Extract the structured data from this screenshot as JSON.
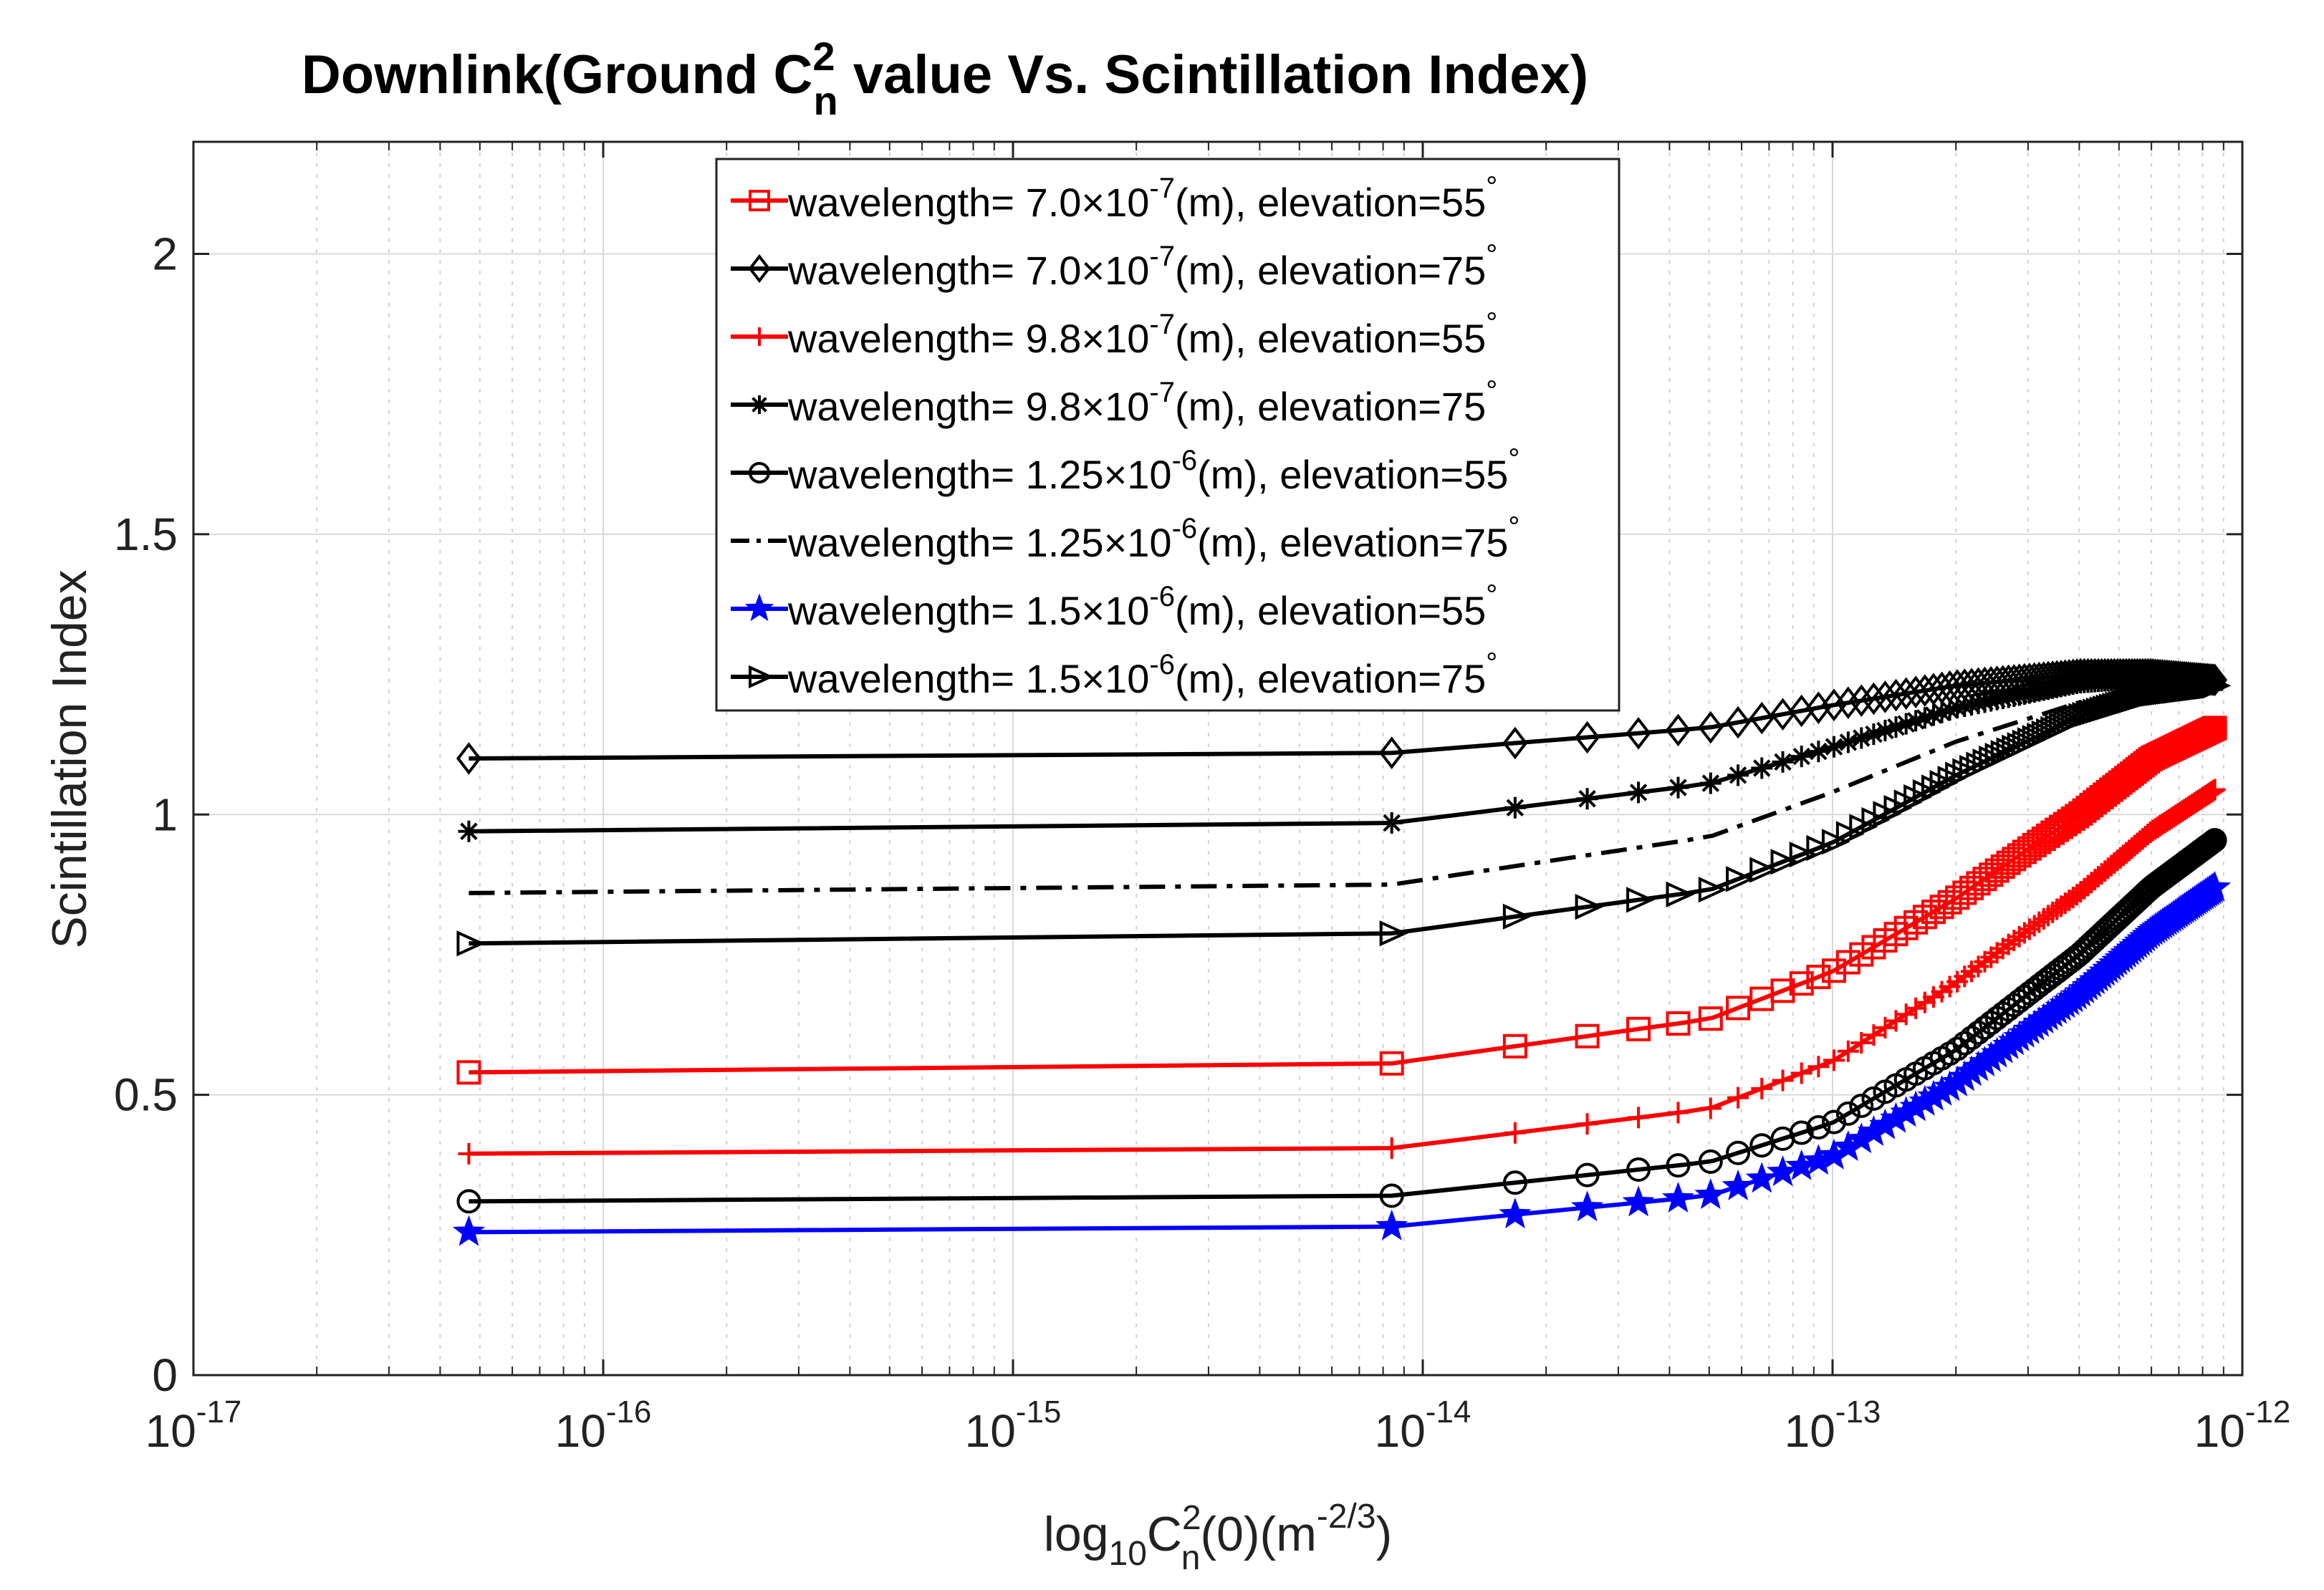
{
  "chart_data": {
    "type": "line",
    "title": {
      "prefix": "Downlink(Ground C",
      "sup": "2",
      "sub": "n",
      "suffix": " value Vs. Scintillation Index)"
    },
    "xlabel": {
      "p1": "log",
      "s1": "10",
      "p2": "C",
      "sup2": "2",
      "sub2": "n",
      "p3": "(0)(m",
      "sup3": "-2/3",
      "p4": ")"
    },
    "ylabel": "Scintillation Index",
    "x_scale": "log",
    "xlim": [
      1e-17,
      1e-12
    ],
    "ylim": [
      0,
      2.2
    ],
    "x_ticks": [
      {
        "base": "10",
        "exp": "-17"
      },
      {
        "base": "10",
        "exp": "-16"
      },
      {
        "base": "10",
        "exp": "-15"
      },
      {
        "base": "10",
        "exp": "-14"
      },
      {
        "base": "10",
        "exp": "-13"
      },
      {
        "base": "10",
        "exp": "-12"
      }
    ],
    "y_ticks": [
      "0",
      "0.5",
      "1",
      "1.5",
      "2"
    ],
    "grid": true,
    "legend_position": "top-center",
    "series": [
      {
        "name": {
          "pre": "wavelength= 7.0×10",
          "exp": "-7",
          "post": "(m), elevation=55",
          "deg": "°"
        },
        "color": "#ff0000",
        "marker": "square",
        "line": "solid",
        "points": [
          [
            4.7e-17,
            0.54
          ],
          [
            8.4e-15,
            0.556
          ],
          [
            5e-14,
            0.635
          ],
          [
            1e-13,
            0.72
          ],
          [
            2e-13,
            0.85
          ],
          [
            4e-13,
            1.0
          ],
          [
            6e-13,
            1.1
          ],
          [
            8.6e-13,
            1.155
          ]
        ]
      },
      {
        "name": {
          "pre": "wavelength= 7.0×10",
          "exp": "-7",
          "post": "(m), elevation=75",
          "deg": "°"
        },
        "color": "#000000",
        "marker": "diamond",
        "line": "solid",
        "points": [
          [
            4.7e-17,
            1.1
          ],
          [
            8.4e-15,
            1.11
          ],
          [
            5e-14,
            1.155
          ],
          [
            1e-13,
            1.195
          ],
          [
            2e-13,
            1.23
          ],
          [
            4e-13,
            1.25
          ],
          [
            6e-13,
            1.25
          ],
          [
            8.6e-13,
            1.24
          ]
        ]
      },
      {
        "name": {
          "pre": "wavelength= 9.8×10",
          "exp": "-7",
          "post": "(m), elevation=55",
          "deg": "°"
        },
        "color": "#ff0000",
        "marker": "plus",
        "line": "solid",
        "points": [
          [
            4.7e-17,
            0.395
          ],
          [
            8.4e-15,
            0.405
          ],
          [
            5e-14,
            0.475
          ],
          [
            1e-13,
            0.56
          ],
          [
            2e-13,
            0.7
          ],
          [
            4e-13,
            0.86
          ],
          [
            6e-13,
            0.97
          ],
          [
            8.6e-13,
            1.045
          ]
        ]
      },
      {
        "name": {
          "pre": "wavelength= 9.8×10",
          "exp": "-7",
          "post": "(m), elevation=75",
          "deg": "°"
        },
        "color": "#000000",
        "marker": "asterisk",
        "line": "solid",
        "points": [
          [
            4.7e-17,
            0.97
          ],
          [
            8.4e-15,
            0.985
          ],
          [
            5e-14,
            1.055
          ],
          [
            1e-13,
            1.12
          ],
          [
            2e-13,
            1.19
          ],
          [
            4e-13,
            1.235
          ],
          [
            6e-13,
            1.245
          ],
          [
            8.6e-13,
            1.235
          ]
        ]
      },
      {
        "name": {
          "pre": "wavelength= 1.25×10",
          "exp": "-6",
          "post": "(m), elevation=55",
          "deg": "°"
        },
        "color": "#000000",
        "marker": "circle",
        "line": "solid",
        "points": [
          [
            4.7e-17,
            0.31
          ],
          [
            8.4e-15,
            0.32
          ],
          [
            5e-14,
            0.38
          ],
          [
            1e-13,
            0.45
          ],
          [
            2e-13,
            0.58
          ],
          [
            4e-13,
            0.75
          ],
          [
            6e-13,
            0.87
          ],
          [
            8.6e-13,
            0.955
          ]
        ]
      },
      {
        "name": {
          "pre": "wavelength= 1.25×10",
          "exp": "-6",
          "post": "(m), elevation=75",
          "deg": "°"
        },
        "color": "#000000",
        "marker": "none",
        "line": "dashdot",
        "points": [
          [
            4.7e-17,
            0.86
          ],
          [
            8.4e-15,
            0.875
          ],
          [
            5e-14,
            0.96
          ],
          [
            1e-13,
            1.04
          ],
          [
            2e-13,
            1.13
          ],
          [
            4e-13,
            1.2
          ],
          [
            6e-13,
            1.225
          ],
          [
            8.6e-13,
            1.235
          ]
        ]
      },
      {
        "name": {
          "pre": "wavelength= 1.5×10",
          "exp": "-6",
          "post": "(m), elevation=55",
          "deg": "°"
        },
        "color": "#0000ff",
        "marker": "pentagram",
        "line": "solid",
        "points": [
          [
            4.7e-17,
            0.255
          ],
          [
            8.4e-15,
            0.265
          ],
          [
            5e-14,
            0.32
          ],
          [
            1e-13,
            0.39
          ],
          [
            2e-13,
            0.52
          ],
          [
            4e-13,
            0.68
          ],
          [
            6e-13,
            0.79
          ],
          [
            8.6e-13,
            0.87
          ]
        ]
      },
      {
        "name": {
          "pre": "wavelength= 1.5×10",
          "exp": "-6",
          "post": "(m), elevation=75",
          "deg": "°"
        },
        "color": "#000000",
        "marker": "triangle-right",
        "line": "solid",
        "points": [
          [
            4.7e-17,
            0.77
          ],
          [
            8.4e-15,
            0.788
          ],
          [
            5e-14,
            0.865
          ],
          [
            1e-13,
            0.95
          ],
          [
            2e-13,
            1.07
          ],
          [
            4e-13,
            1.175
          ],
          [
            6e-13,
            1.215
          ],
          [
            8.6e-13,
            1.23
          ]
        ]
      }
    ]
  }
}
